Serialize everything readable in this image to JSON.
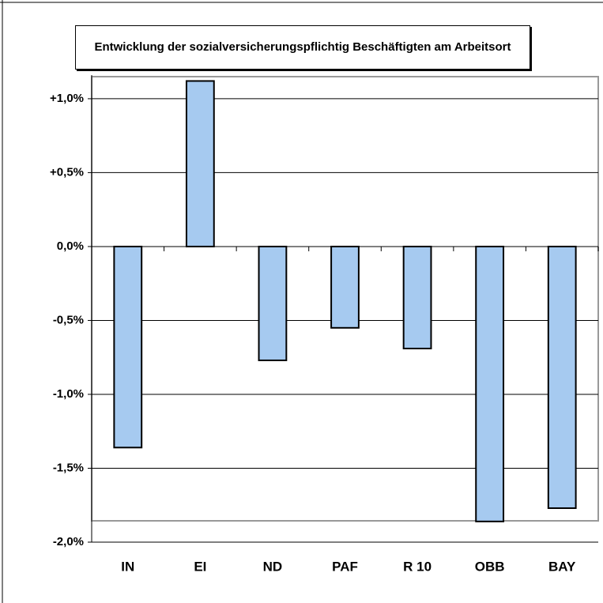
{
  "chart_data": {
    "type": "bar",
    "title": "Entwicklung der sozialversicherungspflichtig Beschäftigten am Arbeitsort",
    "categories": [
      "IN",
      "EI",
      "ND",
      "PAF",
      "R 10",
      "OBB",
      "BAY"
    ],
    "values": [
      -1.36,
      1.12,
      -0.77,
      -0.55,
      -0.69,
      -1.86,
      -1.77
    ],
    "color": "#a6caf0",
    "ylim": [
      -2.0,
      1.16
    ],
    "yticks": [
      {
        "value": -2.0,
        "label": "-2,0%"
      },
      {
        "value": -1.5,
        "label": "-1,5%"
      },
      {
        "value": -1.0,
        "label": "-1,0%"
      },
      {
        "value": -0.5,
        "label": "-0,5%"
      },
      {
        "value": 0.0,
        "label": "0,0%"
      },
      {
        "value": 0.5,
        "label": "+0,5%"
      },
      {
        "value": 1.0,
        "label": "+1,0%"
      }
    ],
    "grid": true
  }
}
